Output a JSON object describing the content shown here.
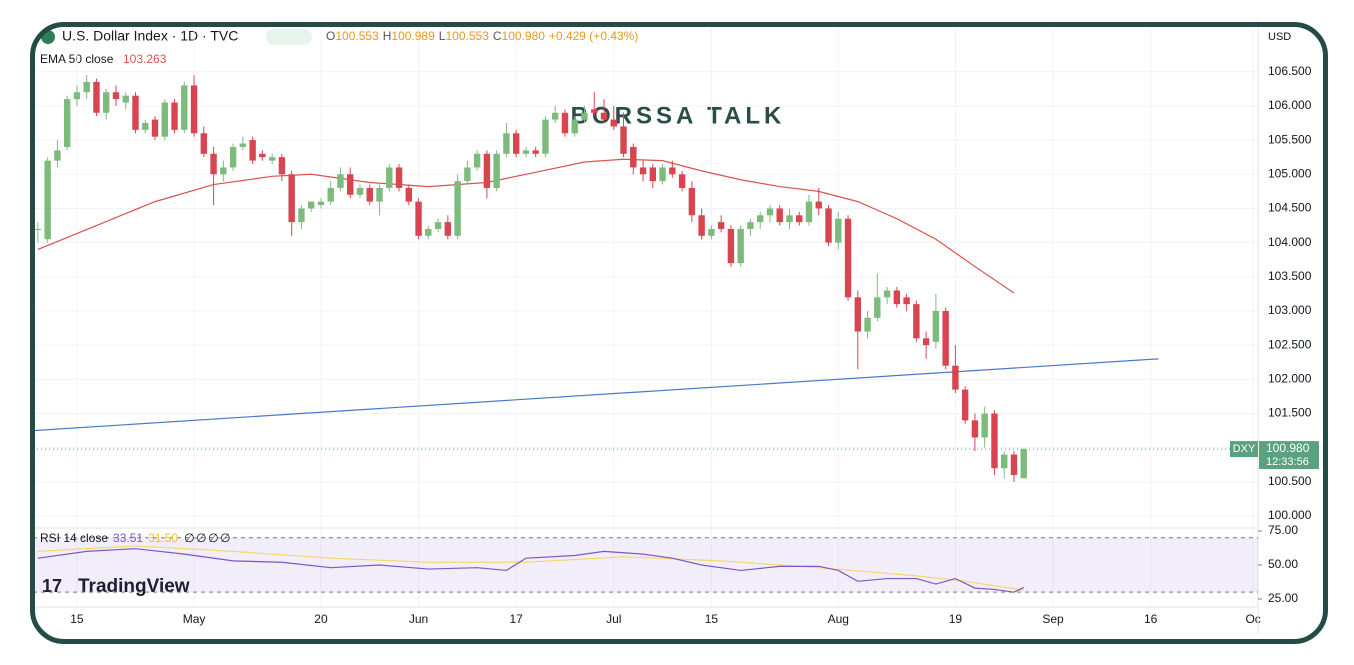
{
  "chart_data": {
    "type": "candlestick",
    "title": "U.S. Dollar Index · 1D · TVC",
    "quote": [
      {
        "label": "O",
        "value": "100.553"
      },
      {
        "label": "H",
        "value": "100.989"
      },
      {
        "label": "L",
        "value": "100.553"
      },
      {
        "label": "C",
        "value": "100.980"
      }
    ],
    "change": "+0.429 (+0.43%)",
    "currency": "USD",
    "watermark": "BORSSA TALK",
    "logo": "TradingView",
    "up_color": "#7dbb7d",
    "down_color": "#d64550",
    "xlim": [
      -0.5,
      125
    ],
    "xticks": [
      {
        "value": 4,
        "label": "15"
      },
      {
        "value": 16,
        "label": "May"
      },
      {
        "value": 29,
        "label": "20"
      },
      {
        "value": 39,
        "label": "Jun"
      },
      {
        "value": 49,
        "label": "17"
      },
      {
        "value": 59,
        "label": "Jul"
      },
      {
        "value": 69,
        "label": "15"
      },
      {
        "value": 82,
        "label": "Aug"
      },
      {
        "value": 94,
        "label": "19"
      },
      {
        "value": 104,
        "label": "Sep"
      },
      {
        "value": 114,
        "label": "16"
      },
      {
        "value": 124.5,
        "label": "Oc"
      }
    ],
    "ylim": [
      99.84,
      107.14
    ],
    "yticks": [
      {
        "value": 100,
        "label": "100.000"
      },
      {
        "value": 100.5,
        "label": "100.500"
      },
      {
        "value": 101,
        "label": "101.000"
      },
      {
        "value": 101.5,
        "label": "101.500"
      },
      {
        "value": 102,
        "label": "102.000"
      },
      {
        "value": 102.5,
        "label": "102.500"
      },
      {
        "value": 103,
        "label": "103.000"
      },
      {
        "value": 103.5,
        "label": "103.500"
      },
      {
        "value": 104,
        "label": "104.000"
      },
      {
        "value": 104.5,
        "label": "104.500"
      },
      {
        "value": 105,
        "label": "105.000"
      },
      {
        "value": 105.5,
        "label": "105.500"
      },
      {
        "value": 106,
        "label": "106.000"
      },
      {
        "value": 106.5,
        "label": "106.500"
      }
    ],
    "grid": true,
    "ohlc": [
      [
        104.2,
        104.3,
        104.0,
        104.2
      ],
      [
        104.05,
        105.25,
        104.0,
        105.2
      ],
      [
        105.2,
        105.5,
        105.1,
        105.35
      ],
      [
        105.4,
        106.15,
        105.35,
        106.1
      ],
      [
        106.1,
        106.3,
        106.0,
        106.2
      ],
      [
        106.2,
        106.45,
        106.1,
        106.35
      ],
      [
        106.35,
        106.4,
        105.85,
        105.9
      ],
      [
        105.9,
        106.25,
        105.8,
        106.2
      ],
      [
        106.2,
        106.3,
        106.0,
        106.1
      ],
      [
        106.05,
        106.2,
        105.95,
        106.15
      ],
      [
        106.15,
        106.2,
        105.6,
        105.65
      ],
      [
        105.65,
        105.8,
        105.6,
        105.75
      ],
      [
        105.8,
        105.85,
        105.5,
        105.55
      ],
      [
        105.55,
        106.1,
        105.5,
        106.05
      ],
      [
        106.05,
        106.1,
        105.6,
        105.65
      ],
      [
        105.65,
        106.35,
        105.6,
        106.3
      ],
      [
        106.3,
        106.45,
        105.55,
        105.6
      ],
      [
        105.6,
        105.7,
        105.25,
        105.3
      ],
      [
        105.3,
        105.4,
        104.55,
        105.0
      ],
      [
        105.0,
        105.2,
        104.9,
        105.1
      ],
      [
        105.1,
        105.45,
        105.05,
        105.4
      ],
      [
        105.4,
        105.55,
        105.35,
        105.45
      ],
      [
        105.5,
        105.55,
        105.15,
        105.2
      ],
      [
        105.3,
        105.35,
        105.2,
        105.25
      ],
      [
        105.2,
        105.3,
        105.15,
        105.25
      ],
      [
        105.25,
        105.3,
        104.9,
        105.0
      ],
      [
        105.0,
        105.05,
        104.1,
        104.3
      ],
      [
        104.3,
        104.55,
        104.2,
        104.5
      ],
      [
        104.5,
        104.6,
        104.45,
        104.6
      ],
      [
        104.55,
        104.65,
        104.5,
        104.6
      ],
      [
        104.6,
        104.9,
        104.55,
        104.8
      ],
      [
        104.8,
        105.1,
        104.75,
        105.0
      ],
      [
        105.0,
        105.1,
        104.65,
        104.7
      ],
      [
        104.7,
        104.85,
        104.65,
        104.8
      ],
      [
        104.8,
        104.85,
        104.55,
        104.6
      ],
      [
        104.6,
        104.85,
        104.4,
        104.8
      ],
      [
        104.8,
        105.15,
        104.75,
        105.1
      ],
      [
        105.1,
        105.15,
        104.75,
        104.8
      ],
      [
        104.8,
        104.85,
        104.55,
        104.6
      ],
      [
        104.6,
        104.65,
        104.05,
        104.1
      ],
      [
        104.1,
        104.25,
        104.05,
        104.2
      ],
      [
        104.2,
        104.35,
        104.15,
        104.3
      ],
      [
        104.3,
        104.4,
        104.05,
        104.1
      ],
      [
        104.1,
        105.0,
        104.05,
        104.9
      ],
      [
        104.9,
        105.2,
        104.85,
        105.1
      ],
      [
        105.1,
        105.35,
        105.05,
        105.3
      ],
      [
        105.3,
        105.35,
        104.65,
        104.8
      ],
      [
        104.8,
        105.35,
        104.75,
        105.3
      ],
      [
        105.3,
        105.75,
        105.25,
        105.6
      ],
      [
        105.6,
        105.65,
        105.25,
        105.3
      ],
      [
        105.3,
        105.4,
        105.25,
        105.35
      ],
      [
        105.35,
        105.4,
        105.25,
        105.3
      ],
      [
        105.3,
        105.85,
        105.25,
        105.8
      ],
      [
        105.8,
        106.0,
        105.75,
        105.9
      ],
      [
        105.9,
        105.95,
        105.55,
        105.6
      ],
      [
        105.6,
        105.85,
        105.55,
        105.8
      ],
      [
        105.8,
        106.0,
        105.75,
        105.9
      ],
      [
        105.95,
        106.2,
        105.85,
        105.9
      ],
      [
        105.9,
        106.1,
        105.75,
        105.8
      ],
      [
        105.8,
        106.0,
        105.65,
        105.7
      ],
      [
        105.7,
        105.9,
        105.25,
        105.3
      ],
      [
        105.4,
        105.45,
        105.0,
        105.1
      ],
      [
        105.1,
        105.2,
        104.9,
        105.0
      ],
      [
        105.1,
        105.15,
        104.8,
        104.9
      ],
      [
        104.9,
        105.15,
        104.85,
        105.1
      ],
      [
        105.1,
        105.2,
        104.95,
        105.0
      ],
      [
        105.0,
        105.05,
        104.75,
        104.8
      ],
      [
        104.8,
        104.9,
        104.3,
        104.4
      ],
      [
        104.4,
        104.5,
        104.05,
        104.1
      ],
      [
        104.1,
        104.25,
        104.05,
        104.2
      ],
      [
        104.3,
        104.4,
        104.15,
        104.2
      ],
      [
        104.2,
        104.25,
        103.65,
        103.7
      ],
      [
        103.7,
        104.25,
        103.65,
        104.2
      ],
      [
        104.2,
        104.35,
        104.1,
        104.3
      ],
      [
        104.3,
        104.45,
        104.2,
        104.4
      ],
      [
        104.4,
        104.55,
        104.3,
        104.5
      ],
      [
        104.5,
        104.55,
        104.25,
        104.3
      ],
      [
        104.3,
        104.5,
        104.2,
        104.4
      ],
      [
        104.4,
        104.45,
        104.25,
        104.3
      ],
      [
        104.3,
        104.7,
        104.25,
        104.6
      ],
      [
        104.6,
        104.8,
        104.4,
        104.5
      ],
      [
        104.5,
        104.55,
        103.95,
        104.0
      ],
      [
        104.0,
        104.45,
        103.9,
        104.35
      ],
      [
        104.35,
        104.4,
        103.15,
        103.2
      ],
      [
        103.2,
        103.3,
        102.15,
        102.7
      ],
      [
        102.7,
        103.0,
        102.6,
        102.9
      ],
      [
        102.9,
        103.55,
        102.85,
        103.2
      ],
      [
        103.2,
        103.35,
        103.1,
        103.3
      ],
      [
        103.3,
        103.35,
        103.05,
        103.1
      ],
      [
        103.2,
        103.25,
        103.0,
        103.1
      ],
      [
        103.1,
        103.15,
        102.55,
        102.6
      ],
      [
        102.6,
        102.7,
        102.3,
        102.5
      ],
      [
        102.55,
        103.25,
        102.45,
        103.0
      ],
      [
        103.0,
        103.05,
        102.15,
        102.2
      ],
      [
        102.2,
        102.5,
        101.8,
        101.85
      ],
      [
        101.85,
        101.9,
        101.35,
        101.4
      ],
      [
        101.4,
        101.5,
        100.95,
        101.15
      ],
      [
        101.15,
        101.6,
        101.0,
        101.5
      ],
      [
        101.5,
        101.55,
        100.6,
        100.7
      ],
      [
        100.7,
        100.95,
        100.55,
        100.9
      ],
      [
        100.9,
        100.95,
        100.5,
        100.6
      ],
      [
        100.553,
        100.989,
        100.553,
        100.98
      ]
    ],
    "ema": {
      "label": "EMA 50 close",
      "value_label": "103.263",
      "color": "#d9534f",
      "x": [
        0,
        6,
        12,
        18,
        24,
        28,
        34,
        40,
        46,
        50,
        56,
        60,
        64,
        68,
        72,
        76,
        80,
        84,
        88,
        92,
        96,
        100
      ],
      "values": [
        103.9,
        104.25,
        104.6,
        104.85,
        104.97,
        105.0,
        104.88,
        104.82,
        104.88,
        105.0,
        105.18,
        105.22,
        105.2,
        105.05,
        104.92,
        104.82,
        104.75,
        104.6,
        104.35,
        104.05,
        103.65,
        103.263
      ]
    },
    "trendline": {
      "color": "#4a78c8",
      "x": [
        -0.5,
        114.8
      ],
      "values": [
        101.25,
        102.3
      ]
    },
    "price_tag": {
      "symbol": "DXY",
      "label": "100.980",
      "countdown": "12:33:56"
    },
    "rsi": {
      "label": "RSI 14 close",
      "value_label": "33.51",
      "ma_label": "31.50",
      "na": [
        "∅",
        "∅",
        "∅",
        "∅"
      ],
      "ylim": [
        19.1,
        77.2
      ],
      "yticks": [
        {
          "value": 25,
          "label": "25.00"
        },
        {
          "value": 50,
          "label": "50.00"
        },
        {
          "value": 75,
          "label": "75.00"
        }
      ],
      "levels": [
        30,
        70
      ],
      "color": "#7e57c2",
      "ma_color": "#f5d76e",
      "x": [
        0,
        5,
        10,
        15,
        20,
        25,
        30,
        35,
        40,
        45,
        48,
        50,
        55,
        58,
        62,
        65,
        68,
        72,
        76,
        80,
        82,
        84,
        87,
        90,
        92,
        94,
        96,
        98,
        100,
        101
      ],
      "values": [
        55,
        60,
        62,
        58,
        53,
        52,
        48,
        50,
        47,
        48,
        46,
        55,
        57,
        60,
        58,
        55,
        50,
        46,
        49,
        49,
        46,
        38,
        40,
        40,
        36,
        40,
        33,
        32,
        30,
        33.51
      ],
      "ma_x": [
        0,
        10,
        20,
        30,
        40,
        50,
        60,
        70,
        80,
        90,
        95,
        101
      ],
      "ma_values": [
        60,
        64,
        60,
        55,
        52,
        52,
        56,
        53,
        48,
        42,
        38,
        31.5
      ]
    }
  }
}
